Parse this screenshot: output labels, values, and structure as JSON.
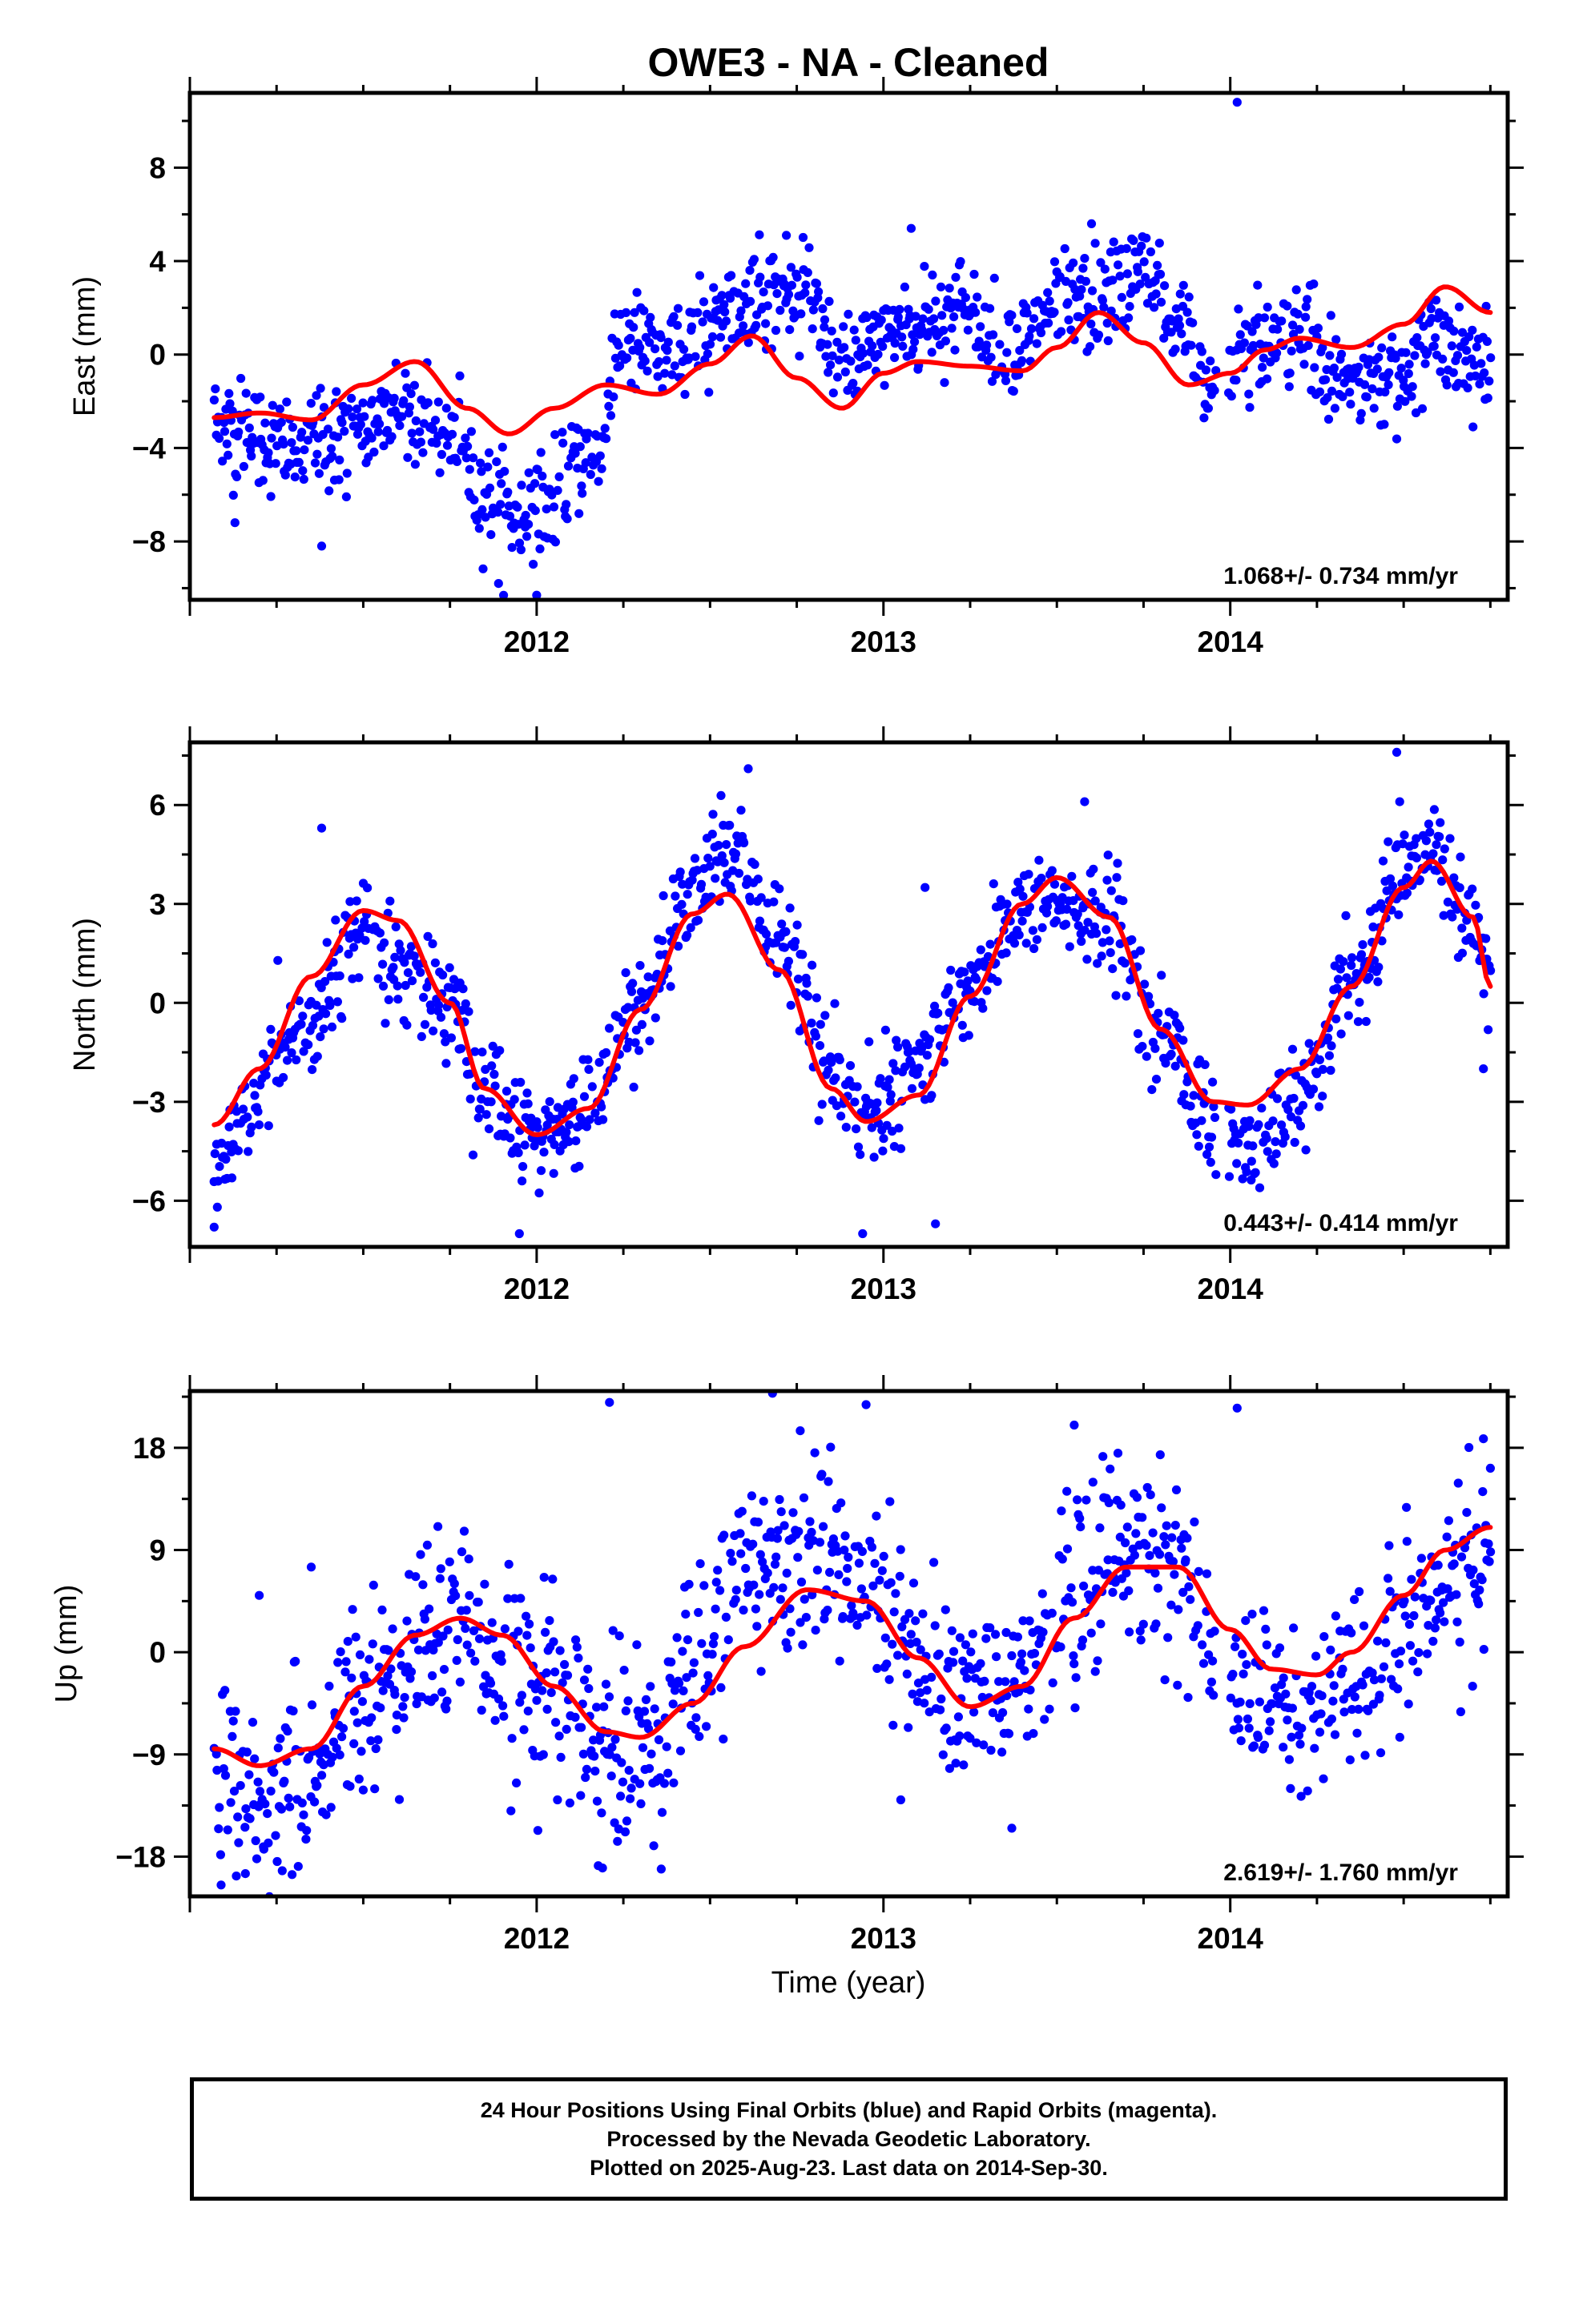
{
  "title": "OWE3  - NA - Cleaned",
  "xlabel": "Time (year)",
  "footer": {
    "line1": "24 Hour Positions Using Final Orbits (blue) and Rapid Orbits (magenta).",
    "line2": "Processed by the Nevada Geodetic Laboratory.",
    "line3": "Plotted on 2025-Aug-23. Last data on 2014-Sep-30."
  },
  "colors": {
    "points": "#0000ff",
    "fit": "#ff0000",
    "axes": "#000000"
  },
  "chart_data": [
    {
      "type": "scatter",
      "ylabel": "East (mm)",
      "xlim": [
        2011.0,
        2014.8
      ],
      "ylim": [
        -10.5,
        11.2
      ],
      "xticks": [
        2012,
        2013,
        2014
      ],
      "xtick_labels": [
        "2012",
        "2013",
        "2014"
      ],
      "yticks": [
        -8,
        -4,
        0,
        4,
        8
      ],
      "ytick_labels": [
        "−8",
        "−4",
        "0",
        "4",
        "8"
      ],
      "rate_label": "1.068+/- 0.734 mm/yr",
      "data_start": 2011.07,
      "data_end": 2014.75,
      "gap": [
        2014.0,
        2013.95
      ],
      "fit": {
        "x": [
          2011.07,
          2011.2,
          2011.35,
          2011.5,
          2011.65,
          2011.8,
          2011.92,
          2012.05,
          2012.2,
          2012.35,
          2012.5,
          2012.62,
          2012.75,
          2012.88,
          2013.0,
          2013.1,
          2013.25,
          2013.4,
          2013.5,
          2013.62,
          2013.75,
          2013.88,
          2014.0,
          2014.1,
          2014.2,
          2014.35,
          2014.5,
          2014.62,
          2014.75
        ],
        "y": [
          -2.7,
          -2.5,
          -2.8,
          -1.3,
          -0.3,
          -2.3,
          -3.4,
          -2.3,
          -1.3,
          -1.7,
          -0.4,
          0.8,
          -1.0,
          -2.3,
          -0.8,
          -0.3,
          -0.5,
          -0.7,
          0.3,
          1.8,
          0.5,
          -1.3,
          -0.8,
          0.2,
          0.7,
          0.3,
          1.3,
          2.9,
          1.8
        ]
      },
      "scatter": {
        "noise": 1.1,
        "anchors": {
          "x": [
            2011.07,
            2011.3,
            2011.5,
            2011.6,
            2011.75,
            2011.85,
            2011.95,
            2012.05,
            2012.15,
            2012.2,
            2012.22,
            2012.4,
            2012.6,
            2012.75,
            2012.9,
            2013.05,
            2013.2,
            2013.35,
            2013.55,
            2013.75,
            2013.85,
            2013.95,
            2014.05,
            2014.2,
            2014.3,
            2014.45,
            2014.6,
            2014.75
          ],
          "y": [
            -3.0,
            -4.0,
            -3.5,
            -2.0,
            -3.5,
            -6.0,
            -7.0,
            -6.0,
            -4.5,
            -3.5,
            0.5,
            0.0,
            2.5,
            2.5,
            -0.5,
            1.0,
            2.0,
            0.5,
            2.0,
            3.5,
            1.0,
            -1.5,
            0.5,
            1.0,
            -1.0,
            -1.5,
            0.5,
            -0.5
          ]
        },
        "extremes": [
          [
            2012.0,
            -10.3
          ],
          [
            2011.89,
            -9.8
          ],
          [
            2014.02,
            10.8
          ],
          [
            2013.6,
            5.6
          ],
          [
            2013.08,
            5.4
          ],
          [
            2012.72,
            5.1
          ],
          [
            2011.13,
            -7.2
          ],
          [
            2011.38,
            -8.2
          ],
          [
            2014.7,
            -3.1
          ]
        ]
      }
    },
    {
      "type": "scatter",
      "ylabel": "North (mm)",
      "xlim": [
        2011.0,
        2014.8
      ],
      "ylim": [
        -7.4,
        7.9
      ],
      "xticks": [
        2012,
        2013,
        2014
      ],
      "xtick_labels": [
        "2012",
        "2013",
        "2014"
      ],
      "yticks": [
        -6,
        -3,
        0,
        3,
        6
      ],
      "ytick_labels": [
        "−6",
        "−3",
        "0",
        "3",
        "6"
      ],
      "rate_label": "0.443+/- 0.414 mm/yr",
      "data_start": 2011.07,
      "data_end": 2014.75,
      "gap": [
        2014.0,
        2013.95
      ],
      "fit": {
        "x": [
          2011.07,
          2011.2,
          2011.35,
          2011.5,
          2011.6,
          2011.75,
          2011.85,
          2012.0,
          2012.15,
          2012.3,
          2012.45,
          2012.55,
          2012.7,
          2012.85,
          2012.95,
          2013.1,
          2013.25,
          2013.4,
          2013.5,
          2013.65,
          2013.8,
          2013.95,
          2014.05,
          2014.2,
          2014.35,
          2014.5,
          2014.58,
          2014.7,
          2014.75
        ],
        "y": [
          -3.7,
          -2.0,
          0.8,
          2.8,
          2.5,
          0.0,
          -2.6,
          -4.0,
          -3.2,
          -0.2,
          2.7,
          3.3,
          1.0,
          -2.6,
          -3.6,
          -2.8,
          0.2,
          3.0,
          3.8,
          2.6,
          -0.8,
          -3.0,
          -3.1,
          -2.0,
          0.5,
          3.5,
          4.3,
          2.6,
          0.5
        ]
      },
      "scatter": {
        "noise": 0.8,
        "anchors": {
          "x": [
            2011.07,
            2011.3,
            2011.5,
            2011.6,
            2011.75,
            2011.85,
            2012.0,
            2012.15,
            2012.3,
            2012.45,
            2012.55,
            2012.7,
            2012.85,
            2012.95,
            2013.1,
            2013.25,
            2013.4,
            2013.5,
            2013.65,
            2013.8,
            2013.95,
            2014.05,
            2014.2,
            2014.35,
            2014.5,
            2014.58,
            2014.7,
            2014.75
          ],
          "y": [
            -5.0,
            -1.0,
            2.3,
            1.2,
            0.0,
            -2.8,
            -4.3,
            -3.5,
            0.0,
            3.5,
            4.8,
            2.0,
            -2.0,
            -3.2,
            -2.0,
            0.5,
            3.0,
            3.0,
            2.5,
            -1.0,
            -3.5,
            -4.5,
            -3.0,
            0.5,
            3.5,
            5.0,
            2.5,
            0.5
          ]
        },
        "extremes": [
          [
            2011.07,
            -6.8
          ],
          [
            2012.61,
            7.1
          ],
          [
            2014.48,
            7.6
          ],
          [
            2012.94,
            -7.0
          ],
          [
            2011.95,
            -7.0
          ],
          [
            2013.15,
            -6.7
          ],
          [
            2013.58,
            6.1
          ],
          [
            2011.38,
            5.3
          ],
          [
            2014.73,
            -2.0
          ],
          [
            2013.12,
            3.5
          ]
        ]
      }
    },
    {
      "type": "scatter",
      "ylabel": "Up (mm)",
      "xlim": [
        2011.0,
        2014.8
      ],
      "ylim": [
        -21.5,
        23.0
      ],
      "xticks": [
        2012,
        2013,
        2014
      ],
      "xtick_labels": [
        "2012",
        "2013",
        "2014"
      ],
      "yticks": [
        -18,
        -9,
        0,
        9,
        18
      ],
      "ytick_labels": [
        "−18",
        "−9",
        "0",
        "9",
        "18"
      ],
      "rate_label": "2.619+/- 1.760 mm/yr",
      "data_start": 2011.07,
      "data_end": 2014.75,
      "gap": [
        2014.0,
        2013.95
      ],
      "fit": {
        "x": [
          2011.07,
          2011.2,
          2011.35,
          2011.5,
          2011.65,
          2011.78,
          2011.9,
          2012.05,
          2012.2,
          2012.3,
          2012.45,
          2012.6,
          2012.78,
          2012.95,
          2013.1,
          2013.25,
          2013.4,
          2013.55,
          2013.7,
          2013.85,
          2014.0,
          2014.12,
          2014.25,
          2014.35,
          2014.5,
          2014.62,
          2014.75
        ],
        "y": [
          -8.5,
          -10.0,
          -8.5,
          -3.0,
          1.5,
          3.0,
          1.5,
          -3.0,
          -7.0,
          -7.5,
          -4.5,
          0.5,
          5.5,
          4.5,
          -0.5,
          -4.8,
          -3.0,
          3.0,
          7.5,
          7.5,
          2.0,
          -1.5,
          -2.0,
          0.0,
          5.0,
          9.0,
          11.0
        ]
      },
      "scatter": {
        "noise": 4.2,
        "anchors": {
          "x": [
            2011.07,
            2011.2,
            2011.35,
            2011.5,
            2011.65,
            2011.78,
            2011.9,
            2012.05,
            2012.2,
            2012.3,
            2012.45,
            2012.6,
            2012.78,
            2012.95,
            2013.1,
            2013.25,
            2013.4,
            2013.55,
            2013.7,
            2013.85,
            2014.0,
            2014.12,
            2014.25,
            2014.35,
            2014.5,
            2014.62,
            2014.75
          ],
          "y": [
            -10.0,
            -14.0,
            -10.0,
            -4.0,
            1.0,
            3.0,
            -1.0,
            -4.0,
            -9.0,
            -8.0,
            -2.0,
            8.0,
            9.0,
            5.0,
            -1.0,
            -4.0,
            -2.0,
            5.0,
            9.0,
            7.0,
            -3.0,
            -5.0,
            -5.0,
            -3.0,
            3.0,
            6.0,
            8.0
          ]
        },
        "extremes": [
          [
            2011.09,
            -20.5
          ],
          [
            2011.16,
            -19.5
          ],
          [
            2012.21,
            22.0
          ],
          [
            2012.68,
            22.8
          ],
          [
            2012.95,
            21.8
          ],
          [
            2014.02,
            21.5
          ],
          [
            2013.37,
            -15.5
          ],
          [
            2012.19,
            -19.0
          ],
          [
            2011.2,
            5.0
          ],
          [
            2011.35,
            7.5
          ],
          [
            2014.73,
            18.8
          ],
          [
            2014.75,
            16.2
          ],
          [
            2013.55,
            20.0
          ],
          [
            2012.76,
            19.5
          ],
          [
            2012.06,
            -13.0
          ],
          [
            2013.05,
            -13.0
          ]
        ]
      }
    }
  ]
}
